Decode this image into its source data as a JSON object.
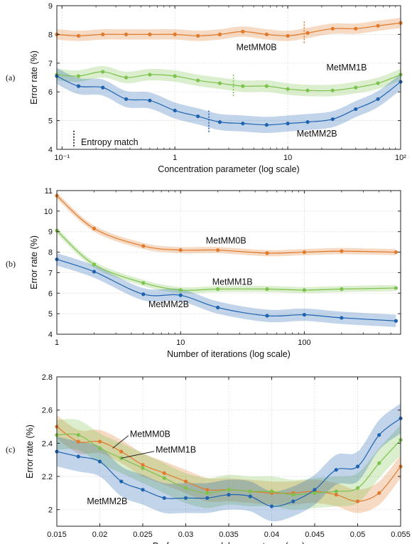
{
  "chart_data": [
    {
      "type": "line",
      "panel_label": "(a)",
      "xlabel": "Concentration parameter (log scale)",
      "ylabel": "Error rate (%)",
      "xscale": "log",
      "xlim": [
        0.09,
        100
      ],
      "ylim": [
        4,
        9
      ],
      "xticks": [
        0.1,
        1,
        10,
        100
      ],
      "xtick_labels": [
        "10⁻¹",
        "1",
        "10",
        "10²"
      ],
      "yticks": [
        4,
        5,
        6,
        7,
        8,
        9
      ],
      "ytick_labels": [
        "4",
        "5",
        "6",
        "7",
        "8",
        "9"
      ],
      "grid": true,
      "series": [
        {
          "name": "MetMM0B",
          "color": "#e07a2c",
          "x": [
            0.09,
            0.14,
            0.23,
            0.37,
            0.6,
            1.0,
            1.6,
            2.5,
            4,
            6.5,
            10,
            15,
            25,
            40,
            63,
            100
          ],
          "y": [
            8.0,
            7.95,
            8.0,
            8.0,
            8.0,
            8.0,
            7.95,
            8.0,
            8.1,
            8.0,
            7.95,
            8.05,
            8.2,
            8.2,
            8.3,
            8.4
          ],
          "band": 0.18,
          "marker_at": 14
        },
        {
          "name": "MetMM1B",
          "color": "#7cc24c",
          "x": [
            0.09,
            0.14,
            0.23,
            0.37,
            0.6,
            1.0,
            1.6,
            2.5,
            4,
            6.5,
            10,
            15,
            25,
            40,
            63,
            100
          ],
          "y": [
            6.6,
            6.55,
            6.7,
            6.5,
            6.6,
            6.55,
            6.4,
            6.3,
            6.2,
            6.2,
            6.1,
            6.05,
            6.05,
            6.15,
            6.3,
            6.6
          ],
          "band": 0.2,
          "marker_at": 3.3
        },
        {
          "name": "MetMM2B",
          "color": "#1f63b0",
          "x": [
            0.09,
            0.14,
            0.23,
            0.37,
            0.6,
            1.0,
            1.6,
            2.5,
            4,
            6.5,
            10,
            15,
            25,
            40,
            63,
            100
          ],
          "y": [
            6.55,
            6.2,
            6.15,
            5.75,
            5.7,
            5.35,
            5.15,
            4.95,
            4.9,
            4.85,
            4.9,
            4.95,
            5.05,
            5.4,
            5.75,
            6.35
          ],
          "band": 0.28,
          "marker_at": 2.0
        }
      ],
      "annotations": [
        {
          "text": "Entropy match",
          "x": 0.15,
          "y": 4.25
        },
        {
          "text": "MetMM0B",
          "x": 3.5,
          "y": 7.55
        },
        {
          "text": "MetMM1B",
          "x": 22,
          "y": 6.85
        },
        {
          "text": "MetMM2B",
          "x": 12,
          "y": 4.55
        }
      ]
    },
    {
      "type": "line",
      "panel_label": "(b)",
      "xlabel": "Number of iterations (log scale)",
      "ylabel": "Error rate (%)",
      "xscale": "log",
      "xlim": [
        1,
        600
      ],
      "ylim": [
        4,
        11
      ],
      "xticks": [
        1,
        10,
        100
      ],
      "xtick_labels": [
        "1",
        "10",
        "100"
      ],
      "yticks": [
        4,
        5,
        6,
        7,
        8,
        9,
        10,
        11
      ],
      "ytick_labels": [
        "4",
        "5",
        "6",
        "7",
        "8",
        "9",
        "10",
        "11"
      ],
      "grid": true,
      "series": [
        {
          "name": "MetMM0B",
          "color": "#e07a2c",
          "x": [
            1,
            2,
            5,
            10,
            20,
            50,
            100,
            200,
            550
          ],
          "y": [
            10.75,
            9.15,
            8.3,
            8.1,
            8.1,
            7.95,
            8.0,
            8.05,
            8.0
          ],
          "band": 0.15
        },
        {
          "name": "MetMM1B",
          "color": "#7cc24c",
          "x": [
            1,
            2,
            5,
            10,
            20,
            50,
            100,
            200,
            550
          ],
          "y": [
            9.05,
            7.4,
            6.5,
            6.15,
            6.2,
            6.2,
            6.15,
            6.2,
            6.25
          ],
          "band": 0.15
        },
        {
          "name": "MetMM2B",
          "color": "#1f63b0",
          "x": [
            1,
            2,
            5,
            10,
            20,
            50,
            100,
            200,
            550
          ],
          "y": [
            7.65,
            7.05,
            5.95,
            5.9,
            5.3,
            4.9,
            4.95,
            4.8,
            4.65
          ],
          "band": 0.3
        }
      ],
      "annotations": [
        {
          "text": "MetMM0B",
          "x": 16,
          "y": 8.55
        },
        {
          "text": "MetMM1B",
          "x": 18,
          "y": 6.55
        },
        {
          "text": "MetMM2B",
          "x": 5.5,
          "y": 5.45
        }
      ]
    },
    {
      "type": "line",
      "panel_label": "(c)",
      "xlabel": "Performance model parameter σ",
      "xlabel_sub": "t",
      "xlabel_tail": " (sec)",
      "ylabel": "Error rate (%)",
      "xscale": "linear",
      "xlim": [
        0.015,
        0.055
      ],
      "ylim": [
        1.9,
        2.8
      ],
      "xticks": [
        0.015,
        0.02,
        0.025,
        0.03,
        0.035,
        0.04,
        0.045,
        0.05,
        0.055
      ],
      "xtick_labels": [
        "0.015",
        "0.02",
        "0.025",
        "0.03",
        "0.035",
        "0.04",
        "0.045",
        "0.05",
        "0.055"
      ],
      "yticks": [
        2,
        2.2,
        2.4,
        2.6,
        2.8
      ],
      "ytick_labels": [
        "2",
        "2.2",
        "2.4",
        "2.6",
        "2.8"
      ],
      "grid": true,
      "series": [
        {
          "name": "MetMM0B",
          "color": "#e07a2c",
          "x": [
            0.015,
            0.0175,
            0.02,
            0.0225,
            0.025,
            0.0275,
            0.03,
            0.0325,
            0.035,
            0.0375,
            0.04,
            0.0425,
            0.045,
            0.0475,
            0.05,
            0.0525,
            0.055
          ],
          "y": [
            2.5,
            2.41,
            2.41,
            2.35,
            2.27,
            2.22,
            2.17,
            2.12,
            2.12,
            2.11,
            2.1,
            2.1,
            2.11,
            2.09,
            2.05,
            2.1,
            2.26
          ],
          "band": 0.07
        },
        {
          "name": "MetMM1B",
          "color": "#7cc24c",
          "x": [
            0.015,
            0.0175,
            0.02,
            0.0225,
            0.025,
            0.0275,
            0.03,
            0.0325,
            0.035,
            0.0375,
            0.04,
            0.0425,
            0.045,
            0.0475,
            0.05,
            0.0525,
            0.055
          ],
          "y": [
            2.45,
            2.45,
            2.37,
            2.31,
            2.25,
            2.19,
            2.13,
            2.1,
            2.12,
            2.11,
            2.11,
            2.09,
            2.1,
            2.11,
            2.13,
            2.28,
            2.42
          ],
          "band": 0.09
        },
        {
          "name": "MetMM2B",
          "color": "#1f63b0",
          "x": [
            0.015,
            0.0175,
            0.02,
            0.0225,
            0.025,
            0.0275,
            0.03,
            0.0325,
            0.035,
            0.0375,
            0.04,
            0.0425,
            0.045,
            0.0475,
            0.05,
            0.0525,
            0.055
          ],
          "y": [
            2.35,
            2.32,
            2.29,
            2.17,
            2.12,
            2.07,
            2.07,
            2.07,
            2.09,
            2.08,
            2.02,
            2.05,
            2.12,
            2.24,
            2.26,
            2.45,
            2.55
          ],
          "band": 0.09
        }
      ],
      "annotations": [
        {
          "text": "MetMM0B",
          "x": 0.0235,
          "y": 2.455,
          "arrow_to": [
            0.0215,
            2.37
          ]
        },
        {
          "text": "MetMM1B",
          "x": 0.0265,
          "y": 2.36,
          "arrow_to": [
            0.0225,
            2.31
          ]
        },
        {
          "text": "MetMM2B",
          "x": 0.0185,
          "y": 2.05
        }
      ]
    }
  ]
}
